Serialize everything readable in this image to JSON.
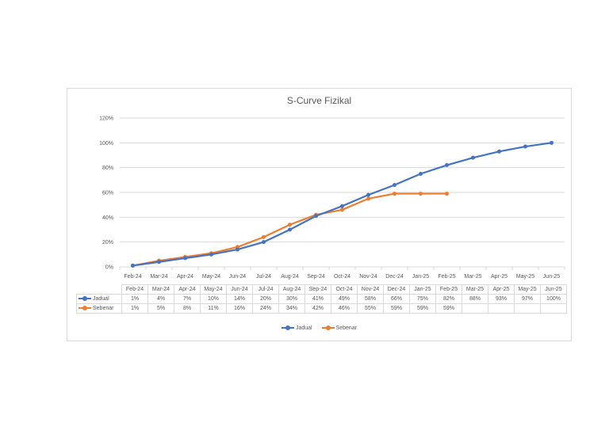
{
  "chart_data": {
    "type": "line",
    "title": "S-Curve Fizikal",
    "xlabel": "",
    "ylabel": "",
    "ylim": [
      0,
      120
    ],
    "yticks": [
      "0%",
      "20%",
      "40%",
      "60%",
      "80%",
      "100%",
      "120%"
    ],
    "grid": true,
    "legend_position": "bottom",
    "categories": [
      "Feb-24",
      "Mar-24",
      "Apr-24",
      "May-24",
      "Jun-24",
      "Jul-24",
      "Aug-24",
      "Sep-24",
      "Oct-24",
      "Nov-24",
      "Dec-24",
      "Jan-25",
      "Feb-25",
      "Mar-25",
      "Apr-25",
      "May-25",
      "Jun-25"
    ],
    "series": [
      {
        "name": "Jadual",
        "color": "#4472c4",
        "values": [
          1,
          4,
          7,
          10,
          14,
          20,
          30,
          41,
          49,
          58,
          66,
          75,
          82,
          88,
          93,
          97,
          100
        ],
        "labels": [
          "1%",
          "4%",
          "7%",
          "10%",
          "14%",
          "20%",
          "30%",
          "41%",
          "49%",
          "58%",
          "66%",
          "75%",
          "82%",
          "88%",
          "93%",
          "97%",
          "100%"
        ]
      },
      {
        "name": "Sebenar",
        "color": "#ed7d31",
        "values": [
          1,
          5,
          8,
          11,
          16,
          24,
          34,
          42,
          46,
          55,
          59,
          59,
          59,
          null,
          null,
          null,
          null
        ],
        "labels": [
          "1%",
          "5%",
          "8%",
          "11%",
          "16%",
          "24%",
          "34%",
          "42%",
          "46%",
          "55%",
          "59%",
          "59%",
          "59%",
          "",
          "",
          "",
          ""
        ]
      }
    ],
    "data_table": true
  },
  "legend": {
    "items": [
      {
        "label": "Jadual",
        "color": "#4472c4"
      },
      {
        "label": "Sebenar",
        "color": "#ed7d31"
      }
    ]
  }
}
